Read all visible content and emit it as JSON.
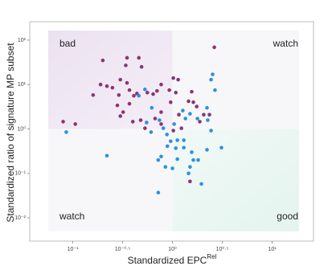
{
  "chart_data": {
    "type": "scatter",
    "xlabel": "Standardized EPC",
    "xlabel_sup": "Rel",
    "ylabel": "Standardized ratio of signature MP subset",
    "annotations": [
      "bad",
      "watch",
      "watch",
      "good"
    ],
    "xscale": "log",
    "yscale": "log",
    "xlim": [
      0.037,
      26
    ],
    "ylim": [
      0.003,
      260
    ],
    "xticks": [
      {
        "value": 0.1,
        "label": "10⁻¹"
      },
      {
        "value": 0.3162,
        "label": "10⁻⁰·⁵"
      },
      {
        "value": 1,
        "label": "10⁰"
      },
      {
        "value": 3.162,
        "label": "10⁰·⁵"
      },
      {
        "value": 10,
        "label": "10¹"
      }
    ],
    "yticks": [
      {
        "value": 100,
        "label": "10²"
      },
      {
        "value": 10,
        "label": "10¹"
      },
      {
        "value": 1,
        "label": "10⁰"
      },
      {
        "value": 0.1,
        "label": "10⁻¹"
      },
      {
        "value": 0.01,
        "label": "10⁻²"
      }
    ],
    "series": [
      {
        "color": "#8a3672",
        "x": [
          0.2,
          0.35,
          0.46,
          0.34,
          0.49,
          0.16,
          0.19,
          0.22,
          0.25,
          0.3,
          0.35,
          0.29,
          0.37,
          0.41,
          0.44,
          0.56,
          0.64,
          0.7,
          0.77,
          1.02,
          1.14,
          0.93,
          1.08,
          0.28,
          0.37,
          0.32,
          0.3,
          0.4,
          0.48,
          0.67,
          0.77,
          0.96,
          1.16,
          1.45,
          1.75,
          1.62,
          1.56,
          2.35,
          2.63,
          1.23,
          0.77,
          0.53,
          0.08,
          0.106,
          1.5,
          1.02,
          2.06,
          1.88
        ],
        "values": [
          35,
          40,
          40,
          27,
          25,
          5.8,
          10,
          9.2,
          8.5,
          12.9,
          10.9,
          5.8,
          7.5,
          5.6,
          6.3,
          6.6,
          6.1,
          7.2,
          10,
          14,
          12.9,
          7.5,
          6.6,
          3.4,
          3.7,
          2.4,
          1.95,
          1.46,
          1.58,
          1.72,
          2.4,
          4.0,
          2.1,
          4.2,
          3.2,
          4.0,
          6.9,
          2.1,
          69,
          1.04,
          1.29,
          1.04,
          1.46,
          1.29,
          0.066,
          0.92,
          2.1,
          1.46
        ]
      },
      {
        "color": "#2e90de",
        "x": [
          0.086,
          0.22,
          0.46,
          0.53,
          0.62,
          0.55,
          0.74,
          0.81,
          0.61,
          0.88,
          1.04,
          1.27,
          1.35,
          1.5,
          1.78,
          2.44,
          2.53,
          2.67,
          2.22,
          2.26,
          2.44,
          3.1,
          1.12,
          0.96,
          1.08,
          0.89,
          0.77,
          0.72,
          0.72,
          0.85,
          1.0,
          1.12,
          1.3,
          1.56,
          1.62,
          1.81,
          1.5,
          1.45,
          1.95,
          2.22,
          1.3
        ],
        "values": [
          0.85,
          0.25,
          5.6,
          7.8,
          3.0,
          1.4,
          1.58,
          1.04,
          0.85,
          0.75,
          1.29,
          2.6,
          1.72,
          2.2,
          1.72,
          12.9,
          17,
          7.5,
          3.0,
          1.58,
          0.92,
          0.38,
          0.56,
          0.53,
          0.37,
          0.41,
          0.24,
          0.2,
          0.037,
          0.14,
          0.13,
          0.21,
          0.38,
          0.3,
          0.2,
          0.2,
          0.14,
          0.1,
          0.058,
          0.34,
          0.56
        ]
      }
    ]
  }
}
